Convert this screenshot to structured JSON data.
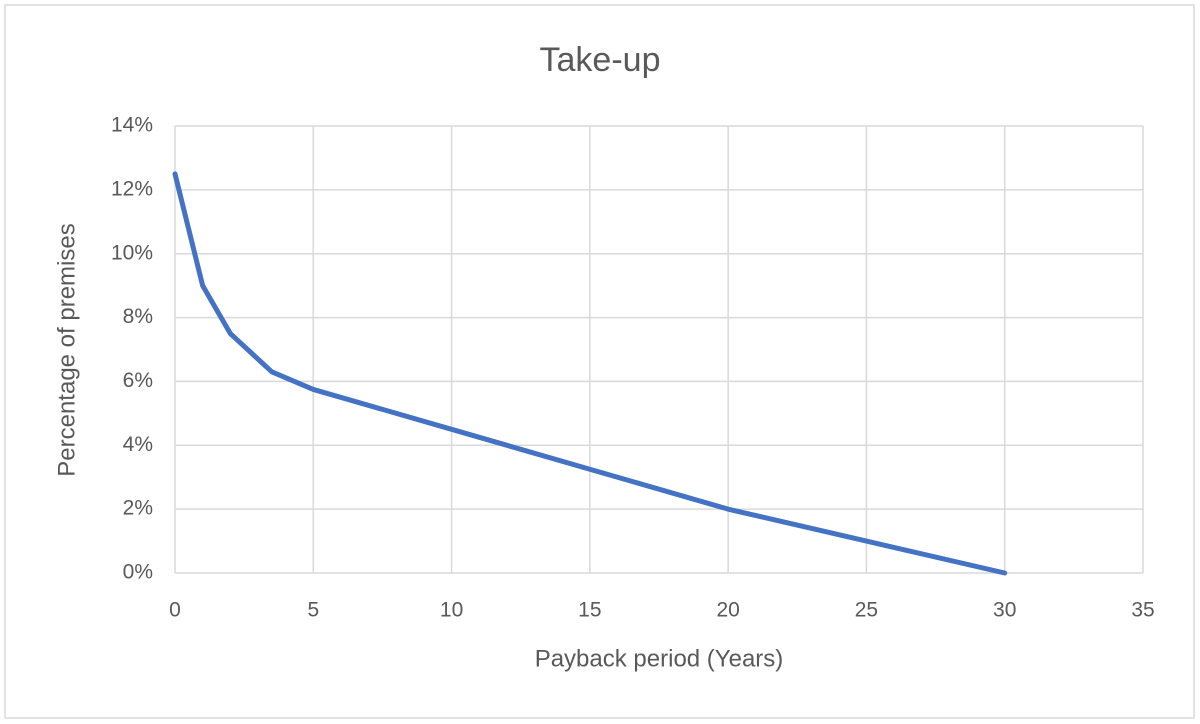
{
  "chart_data": {
    "type": "line",
    "title": "Take-up",
    "x_label": "Payback period (Years)",
    "y_label": "Percentage of premises",
    "x": [
      0,
      1,
      2,
      3.5,
      5,
      10,
      15,
      20,
      25,
      30
    ],
    "values": [
      12.5,
      9,
      7.5,
      6.3,
      5.75,
      4.5,
      3.25,
      2,
      1,
      0
    ],
    "color": "#4472c4",
    "xlim": [
      0,
      35
    ],
    "xticks": [
      0,
      5,
      10,
      15,
      20,
      25,
      30,
      35
    ],
    "ylim": [
      0,
      14
    ],
    "yticks": [
      {
        "value": 0,
        "label": "0%"
      },
      {
        "value": 2,
        "label": "2%"
      },
      {
        "value": 4,
        "label": "4%"
      },
      {
        "value": 6,
        "label": "6%"
      },
      {
        "value": 8,
        "label": "8%"
      },
      {
        "value": 10,
        "label": "10%"
      },
      {
        "value": 12,
        "label": "12%"
      },
      {
        "value": 14,
        "label": "14%"
      }
    ],
    "grid": true
  }
}
